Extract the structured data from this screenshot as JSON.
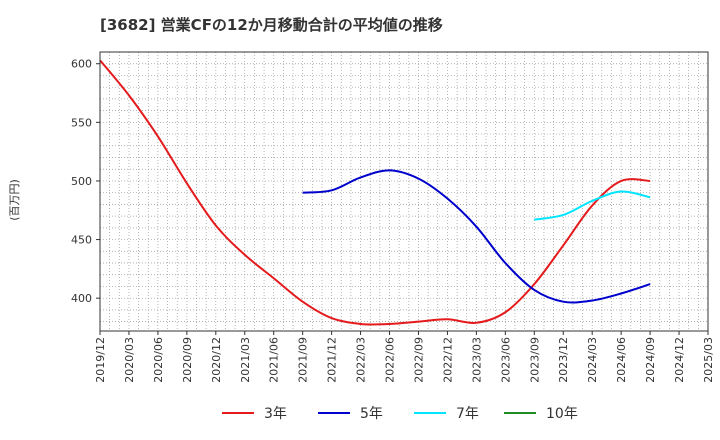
{
  "chart_data": {
    "type": "line",
    "title": "[3682]  営業CFの12か月移動合計の平均値の推移",
    "ylabel": "(百万円)",
    "xlabel": "",
    "ylim": [
      372,
      610
    ],
    "yticks": [
      400,
      450,
      500,
      550,
      600
    ],
    "xticks": [
      "2019/12",
      "2020/03",
      "2020/06",
      "2020/09",
      "2020/12",
      "2021/03",
      "2021/06",
      "2021/09",
      "2021/12",
      "2022/03",
      "2022/06",
      "2022/09",
      "2022/12",
      "2023/03",
      "2023/06",
      "2023/09",
      "2023/12",
      "2024/03",
      "2024/06",
      "2024/09",
      "2024/12",
      "2025/03"
    ],
    "grid": true,
    "legend_position": "bottom",
    "series": [
      {
        "name": "3年",
        "color": "#e41a1c",
        "points": [
          [
            "2019/12",
            603
          ],
          [
            "2020/03",
            573
          ],
          [
            "2020/06",
            538
          ],
          [
            "2020/09",
            498
          ],
          [
            "2020/12",
            462
          ],
          [
            "2021/03",
            437
          ],
          [
            "2021/06",
            417
          ],
          [
            "2021/09",
            397
          ],
          [
            "2021/12",
            383
          ],
          [
            "2022/03",
            378
          ],
          [
            "2022/06",
            378
          ],
          [
            "2022/09",
            380
          ],
          [
            "2022/12",
            382
          ],
          [
            "2023/03",
            379
          ],
          [
            "2023/06",
            388
          ],
          [
            "2023/09",
            412
          ],
          [
            "2023/12",
            445
          ],
          [
            "2024/03",
            479
          ],
          [
            "2024/06",
            500
          ],
          [
            "2024/09",
            500
          ]
        ]
      },
      {
        "name": "5年",
        "color": "#0000cc",
        "points": [
          [
            "2021/09",
            490
          ],
          [
            "2021/12",
            492
          ],
          [
            "2022/03",
            503
          ],
          [
            "2022/06",
            509
          ],
          [
            "2022/09",
            502
          ],
          [
            "2022/12",
            485
          ],
          [
            "2023/03",
            461
          ],
          [
            "2023/06",
            430
          ],
          [
            "2023/09",
            407
          ],
          [
            "2023/12",
            397
          ],
          [
            "2024/03",
            398
          ],
          [
            "2024/06",
            404
          ],
          [
            "2024/09",
            412
          ]
        ]
      },
      {
        "name": "7年",
        "color": "#00e5ff",
        "points": [
          [
            "2023/09",
            467
          ],
          [
            "2023/12",
            471
          ],
          [
            "2024/03",
            483
          ],
          [
            "2024/06",
            491
          ],
          [
            "2024/09",
            486
          ]
        ]
      },
      {
        "name": "10年",
        "color": "#228b22",
        "points": []
      }
    ]
  }
}
